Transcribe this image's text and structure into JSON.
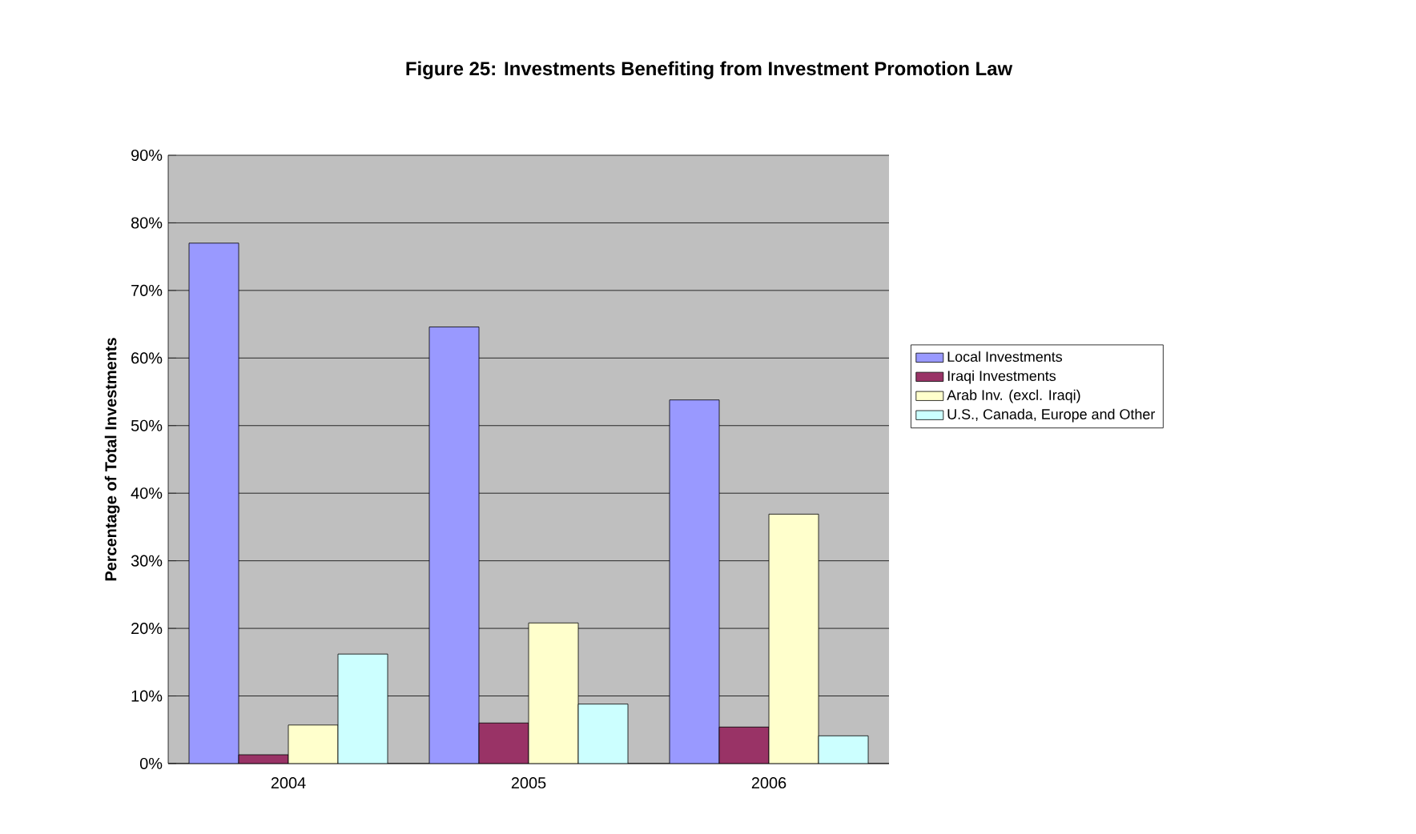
{
  "chart_data": {
    "type": "bar",
    "title": "Figure 25: Investments Benefiting from Investment Promotion Law",
    "ylabel": "Percentage of Total Investments",
    "categories": [
      "2004",
      "2005",
      "2006"
    ],
    "series": [
      {
        "name": "Local Investments",
        "color": "#9999ff",
        "values": [
          77.0,
          64.6,
          53.8
        ]
      },
      {
        "name": "Iraqi Investments",
        "color": "#993366",
        "values": [
          1.3,
          6.0,
          5.4
        ]
      },
      {
        "name": "Arab Inv. (excl. Iraqi)",
        "color": "#ffffcc",
        "values": [
          5.7,
          20.8,
          36.9
        ]
      },
      {
        "name": "U.S., Canada, Europe and Other",
        "color": "#ccffff",
        "values": [
          16.2,
          8.8,
          4.1
        ]
      }
    ],
    "ylim": [
      0,
      90
    ],
    "yticks": [
      {
        "value": 0,
        "label": "0%"
      },
      {
        "value": 10,
        "label": "10%"
      },
      {
        "value": 20,
        "label": "20%"
      },
      {
        "value": 30,
        "label": "30%"
      },
      {
        "value": 40,
        "label": "40%"
      },
      {
        "value": 50,
        "label": "50%"
      },
      {
        "value": 60,
        "label": "60%"
      },
      {
        "value": 70,
        "label": "70%"
      },
      {
        "value": 80,
        "label": "80%"
      },
      {
        "value": 90,
        "label": "90%"
      }
    ],
    "grid": "y",
    "legend": "right"
  }
}
